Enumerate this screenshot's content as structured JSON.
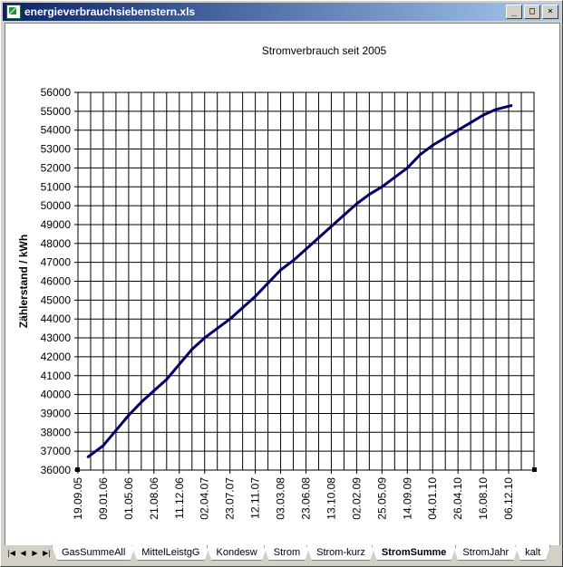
{
  "window": {
    "title": "energieverbrauchsiebenstern.xls",
    "buttons": [
      "_",
      "□",
      "×"
    ]
  },
  "tabs": {
    "nav": [
      "|◀",
      "◀",
      "▶",
      "▶|"
    ],
    "items": [
      {
        "label": "GasSummeAll",
        "active": false
      },
      {
        "label": "MittelLeistgG",
        "active": false
      },
      {
        "label": "Kondesw",
        "active": false
      },
      {
        "label": "Strom",
        "active": false
      },
      {
        "label": "Strom-kurz",
        "active": false
      },
      {
        "label": "StromSumme",
        "active": true
      },
      {
        "label": "StromJahr",
        "active": false
      },
      {
        "label": "kalt",
        "active": false
      }
    ]
  },
  "chart_data": {
    "type": "line",
    "title": "Stromverbrauch  seit 2005",
    "ylabel": "Zählerstand / kWh",
    "xlabel": "",
    "ylim": [
      36000,
      56000
    ],
    "y_ticks": [
      "36000",
      "37000",
      "38000",
      "39000",
      "40000",
      "41000",
      "42000",
      "43000",
      "44000",
      "45000",
      "46000",
      "47000",
      "48000",
      "49000",
      "50000",
      "51000",
      "52000",
      "53000",
      "54000",
      "55000",
      "56000"
    ],
    "x_ticks": [
      "19.09.05",
      "09.01.06",
      "01.05.06",
      "21.08.06",
      "11.12.06",
      "02.04.07",
      "23.07.07",
      "12.11.07",
      "03.03.08",
      "23.06.08",
      "13.10.08",
      "02.02.09",
      "25.05.09",
      "14.09.09",
      "04.01.10",
      "26.04.10",
      "16.08.10",
      "06.12.10"
    ],
    "grid": true,
    "line_color": "#000066",
    "series": [
      {
        "x": [
          0.4,
          1,
          1.5,
          2,
          2.5,
          3,
          3.5,
          4,
          4.5,
          5,
          5.5,
          6,
          6.5,
          7,
          7.5,
          8,
          8.5,
          9,
          9.5,
          10,
          10.5,
          11,
          11.5,
          12,
          12.5,
          13,
          13.5,
          14,
          14.5,
          15,
          15.5,
          16,
          16.5,
          17.1
        ],
        "values": [
          36700,
          37300,
          38100,
          38900,
          39600,
          40200,
          40800,
          41600,
          42400,
          43000,
          43500,
          44000,
          44600,
          45200,
          45900,
          46600,
          47100,
          47700,
          48300,
          48900,
          49500,
          50100,
          50600,
          51000,
          51500,
          52000,
          52700,
          53200,
          53600,
          54000,
          54400,
          54800,
          55100,
          55300
        ]
      }
    ]
  }
}
